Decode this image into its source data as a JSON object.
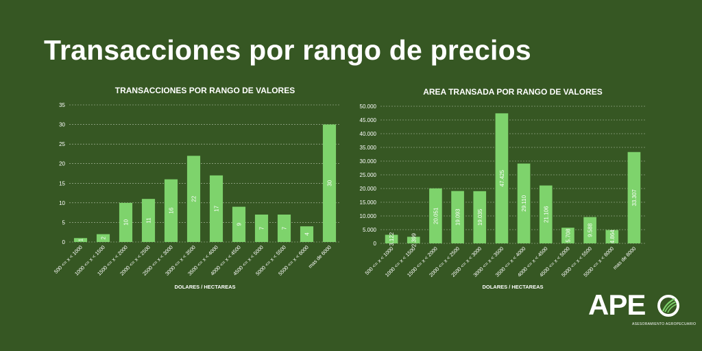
{
  "page": {
    "title": "Transacciones por rango de precios"
  },
  "chart_data": [
    {
      "type": "bar",
      "title": "TRANSACCIONES POR RANGO DE VALORES",
      "xlabel": "DOLARES / HECTAREAS",
      "ylabel": "",
      "categories": [
        "500 <= x < 1000",
        "1000 <= x < 1500",
        "1500 <= x < 2000",
        "2000 <= x < 2500",
        "2500 <= x < 3000",
        "3000 <= x < 3500",
        "3500 <= x < 4000",
        "4000 <= x < 4500",
        "4500 <= x < 5000",
        "5000 <= x < 5500",
        "5500 <= x < 6000",
        "mas de 6000"
      ],
      "values": [
        1,
        2,
        10,
        11,
        16,
        22,
        17,
        9,
        7,
        7,
        4,
        30
      ],
      "value_labels": [
        "1",
        "2",
        "10",
        "11",
        "16",
        "22",
        "17",
        "9",
        "7",
        "7",
        "4",
        "30"
      ],
      "ylim": [
        0,
        35
      ],
      "yticks": [
        "0",
        "5",
        "10",
        "15",
        "20",
        "25",
        "30",
        "35"
      ],
      "grid": true,
      "bar_color": "#7ed36c"
    },
    {
      "type": "bar",
      "title": "AREA TRANSADA POR RANGO DE VALORES",
      "xlabel": "DOLARES / HECTAREAS",
      "ylabel": "",
      "categories": [
        "500 <= x < 1000",
        "1000 <= x < 1500",
        "1500 <= x < 2000",
        "2000 <= x < 2500",
        "2500 <= x < 3000",
        "3000 <= x < 3500",
        "3500 <= x < 4000",
        "4000 <= x < 4500",
        "4500 <= x < 5000",
        "5000 <= x < 5500",
        "5500 <= x < 6000",
        "mas de 6000"
      ],
      "values": [
        3122,
        2399,
        20051,
        19093,
        19035,
        47425,
        29110,
        21106,
        5708,
        9588,
        4864,
        33307
      ],
      "value_labels": [
        "3.122",
        "2.399",
        "20.051",
        "19.093",
        "19.035",
        "47.425",
        "29.110",
        "21.106",
        "5.708",
        "9.588",
        "4.864",
        "33.307"
      ],
      "ylim": [
        0,
        50000
      ],
      "yticks": [
        "0",
        "5.000",
        "10.000",
        "15.000",
        "20.000",
        "25.000",
        "30.000",
        "35.000",
        "40.000",
        "45.000",
        "50.000"
      ],
      "grid": true,
      "bar_color": "#7ed36c"
    }
  ],
  "logo": {
    "text": "APE",
    "subtitle": "ASESORAMIENTO AGROPECUARIO",
    "icon": "leaf-circle-icon"
  }
}
